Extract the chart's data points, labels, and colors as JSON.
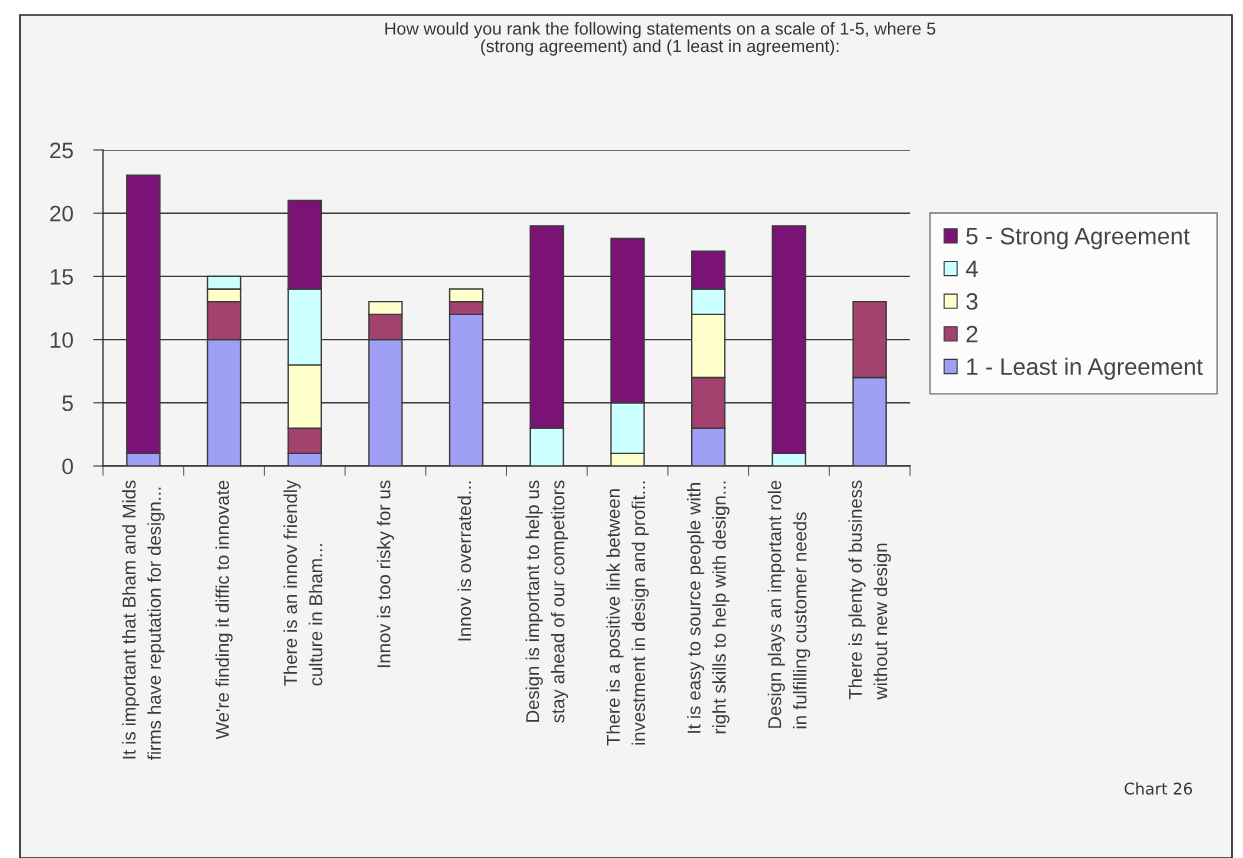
{
  "chart_data": {
    "type": "bar",
    "stacked": true,
    "title": "How would you rank the following statements on a scale of 1-5, where 5\n(strong agreement) and (1 least in agreement):",
    "categories": [
      "It is important that Bham and Mids\nfirms have reputation for design...",
      "We're finding it diffic to innovate",
      "There is an innov friendly\nculture in Bham...",
      "Innov is too risky for us",
      "Innov is overrated...",
      "Design is important to help us\nstay ahead of our competitors",
      "There is a positive link between\ninvestment in design and profit...",
      "It is easy to source people with\nright skills to help with design...",
      "Design plays an important role\nin fulfilling customer needs",
      "There is plenty of business\nwithout new design"
    ],
    "series": [
      {
        "name": "1 - Least in Agreement",
        "color": "#9f9ff5",
        "values": [
          1,
          10,
          1,
          10,
          12,
          null,
          null,
          3,
          null,
          7
        ]
      },
      {
        "name": "2",
        "color": "#a3426f",
        "values": [
          null,
          3,
          2,
          2,
          1,
          null,
          null,
          4,
          null,
          6
        ]
      },
      {
        "name": "3",
        "color": "#ffffcc",
        "values": [
          null,
          1,
          5,
          1,
          1,
          null,
          1,
          5,
          null,
          null
        ]
      },
      {
        "name": "4",
        "color": "#ccffff",
        "values": [
          null,
          1,
          6,
          null,
          null,
          3,
          4,
          2,
          1,
          null
        ]
      },
      {
        "name": "5 - Strong Agreement",
        "color": "#7b1275",
        "values": [
          22,
          null,
          7,
          null,
          null,
          16,
          13,
          3,
          18,
          null
        ]
      }
    ],
    "ylim": [
      0,
      25
    ],
    "yticks": [
      0,
      5,
      10,
      15,
      20,
      25
    ],
    "grid": "y",
    "legend": "right",
    "annotations": [
      "Chart 26"
    ]
  }
}
